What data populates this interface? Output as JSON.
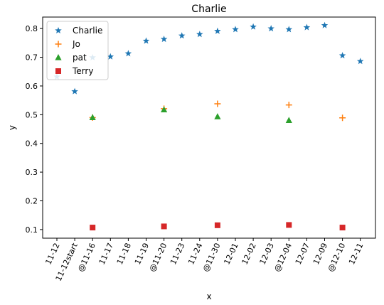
{
  "chart_data": {
    "type": "scatter",
    "title": "Charlie",
    "xlabel": "x",
    "ylabel": "y",
    "categories": [
      "11-12",
      "11-12start",
      "@11-16",
      "11-17",
      "11-18",
      "11-19",
      "@11-20",
      "11-23",
      "11-24",
      "@11-30",
      "12-01",
      "12-02",
      "12-03",
      "@12-04",
      "12-07",
      "12-09",
      "@12-10",
      "12-11"
    ],
    "ylim": [
      0.07,
      0.84
    ],
    "yticks": [
      0.1,
      0.2,
      0.3,
      0.4,
      0.5,
      0.6,
      0.7,
      0.8
    ],
    "grid": false,
    "legend_position": "top-left",
    "series": [
      {
        "name": "Charlie",
        "marker": "star",
        "color": "#1f77b4",
        "points": [
          {
            "x": "11-12",
            "y": 0.632
          },
          {
            "x": "11-12start",
            "y": 0.581
          },
          {
            "x": "@11-16",
            "y": 0.699
          },
          {
            "x": "11-17",
            "y": 0.702
          },
          {
            "x": "11-18",
            "y": 0.713
          },
          {
            "x": "11-19",
            "y": 0.757
          },
          {
            "x": "@11-20",
            "y": 0.763
          },
          {
            "x": "11-23",
            "y": 0.775
          },
          {
            "x": "11-24",
            "y": 0.78
          },
          {
            "x": "@11-30",
            "y": 0.791
          },
          {
            "x": "12-01",
            "y": 0.797
          },
          {
            "x": "12-02",
            "y": 0.806
          },
          {
            "x": "12-03",
            "y": 0.8
          },
          {
            "x": "@12-04",
            "y": 0.797
          },
          {
            "x": "12-07",
            "y": 0.804
          },
          {
            "x": "12-09",
            "y": 0.811
          },
          {
            "x": "@12-10",
            "y": 0.706
          },
          {
            "x": "12-11",
            "y": 0.686
          }
        ]
      },
      {
        "name": "Jo",
        "marker": "plus",
        "color": "#ff7f0e",
        "points": [
          {
            "x": "@11-16",
            "y": 0.49
          },
          {
            "x": "@11-20",
            "y": 0.521
          },
          {
            "x": "@11-30",
            "y": 0.538
          },
          {
            "x": "@12-04",
            "y": 0.534
          },
          {
            "x": "@12-10",
            "y": 0.489
          }
        ]
      },
      {
        "name": "pat",
        "marker": "triangle",
        "color": "#2ca02c",
        "points": [
          {
            "x": "@11-16",
            "y": 0.49
          },
          {
            "x": "@11-20",
            "y": 0.517
          },
          {
            "x": "@11-30",
            "y": 0.493
          },
          {
            "x": "@12-04",
            "y": 0.48
          }
        ]
      },
      {
        "name": "Terry",
        "marker": "square",
        "color": "#d62728",
        "points": [
          {
            "x": "@11-16",
            "y": 0.107
          },
          {
            "x": "@11-20",
            "y": 0.111
          },
          {
            "x": "@11-30",
            "y": 0.115
          },
          {
            "x": "@12-04",
            "y": 0.116
          },
          {
            "x": "@12-10",
            "y": 0.107
          }
        ]
      }
    ]
  }
}
